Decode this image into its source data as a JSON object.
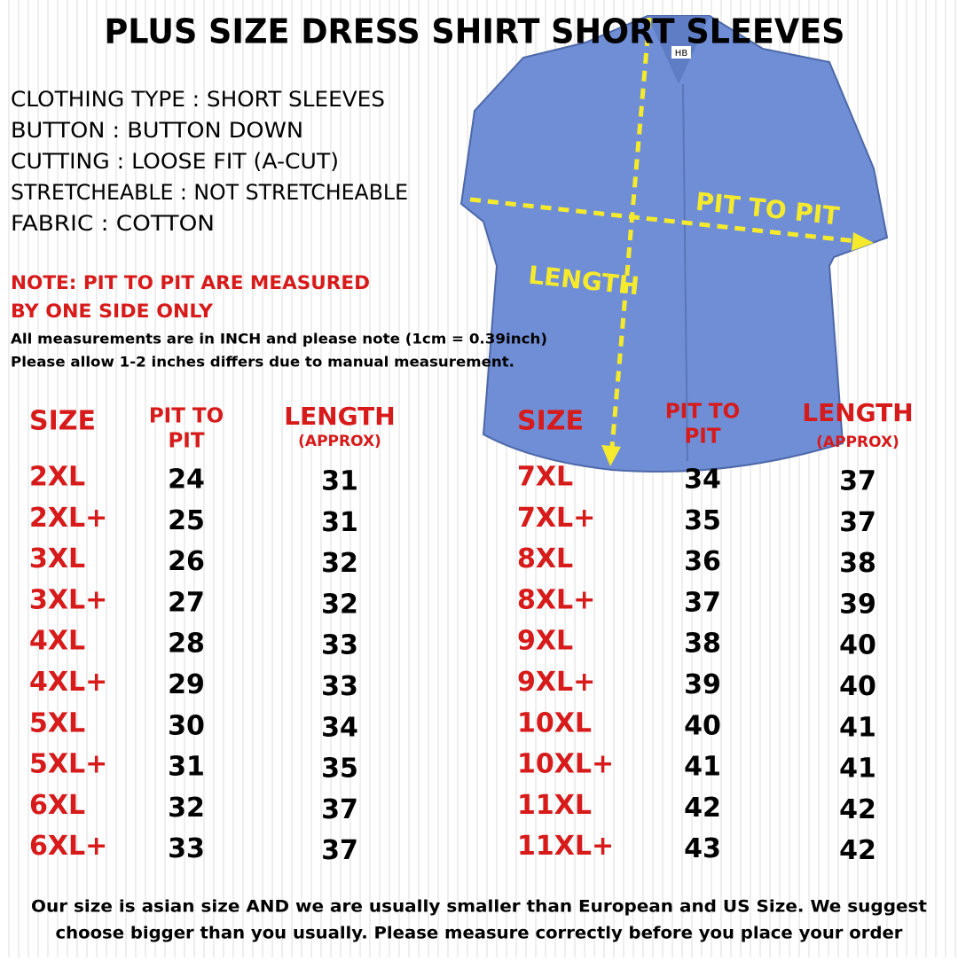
{
  "title": "PLUS SIZE DRESS SHIRT SHORT SLEEVES",
  "specs": [
    "CLOTHING TYPE : SHORT SLEEVES",
    "BUTTON : BUTTON DOWN",
    "CUTTING : LOOSE FIT (A-CUT)",
    "STRETCHEABLE : NOT STRETCHEABLE",
    "FABRIC :  COTTON"
  ],
  "note": [
    "NOTE: PIT TO PIT ARE MEASURED",
    "BY ONE SIDE ONLY"
  ],
  "info": [
    "All measurements are in INCH and please note (1cm = 0.39inch)",
    "Please allow 1-2 inches differs due to manual measurement."
  ],
  "shirt": {
    "tag": "HB",
    "width_label": "PIT TO PIT",
    "length_label": "LENGTH"
  },
  "tables": [
    {
      "header": {
        "size": "SIZE",
        "pit_1": "PIT TO",
        "pit_2": "PIT",
        "length": "LENGTH",
        "length_note": "(APPROX)"
      },
      "rows": [
        [
          "2XL",
          24,
          31
        ],
        [
          "2XL+",
          25,
          31
        ],
        [
          "3XL",
          26,
          32
        ],
        [
          "3XL+",
          27,
          32
        ],
        [
          "4XL",
          28,
          33
        ],
        [
          "4XL+",
          29,
          33
        ],
        [
          "5XL",
          30,
          34
        ],
        [
          "5XL+",
          31,
          35
        ],
        [
          "6XL",
          32,
          37
        ],
        [
          "6XL+",
          33,
          37
        ]
      ]
    },
    {
      "header": {
        "size": "SIZE",
        "pit_1": "PIT TO",
        "pit_2": "PIT",
        "length": "LENGTH",
        "length_note": "(APPROX)"
      },
      "rows": [
        [
          "7XL",
          34,
          37
        ],
        [
          "7XL+",
          35,
          37
        ],
        [
          "8XL",
          36,
          38
        ],
        [
          "8XL+",
          37,
          39
        ],
        [
          "9XL",
          38,
          40
        ],
        [
          "9XL+",
          39,
          40
        ],
        [
          "10XL",
          40,
          41
        ],
        [
          "10XL+",
          41,
          41
        ],
        [
          "11XL",
          42,
          42
        ],
        [
          "11XL+",
          43,
          42
        ]
      ]
    }
  ],
  "footer": [
    "Our size is asian size AND we are usually smaller than European and US Size. We suggest",
    "choose bigger than you usually. Please measure correctly before you place your order"
  ]
}
